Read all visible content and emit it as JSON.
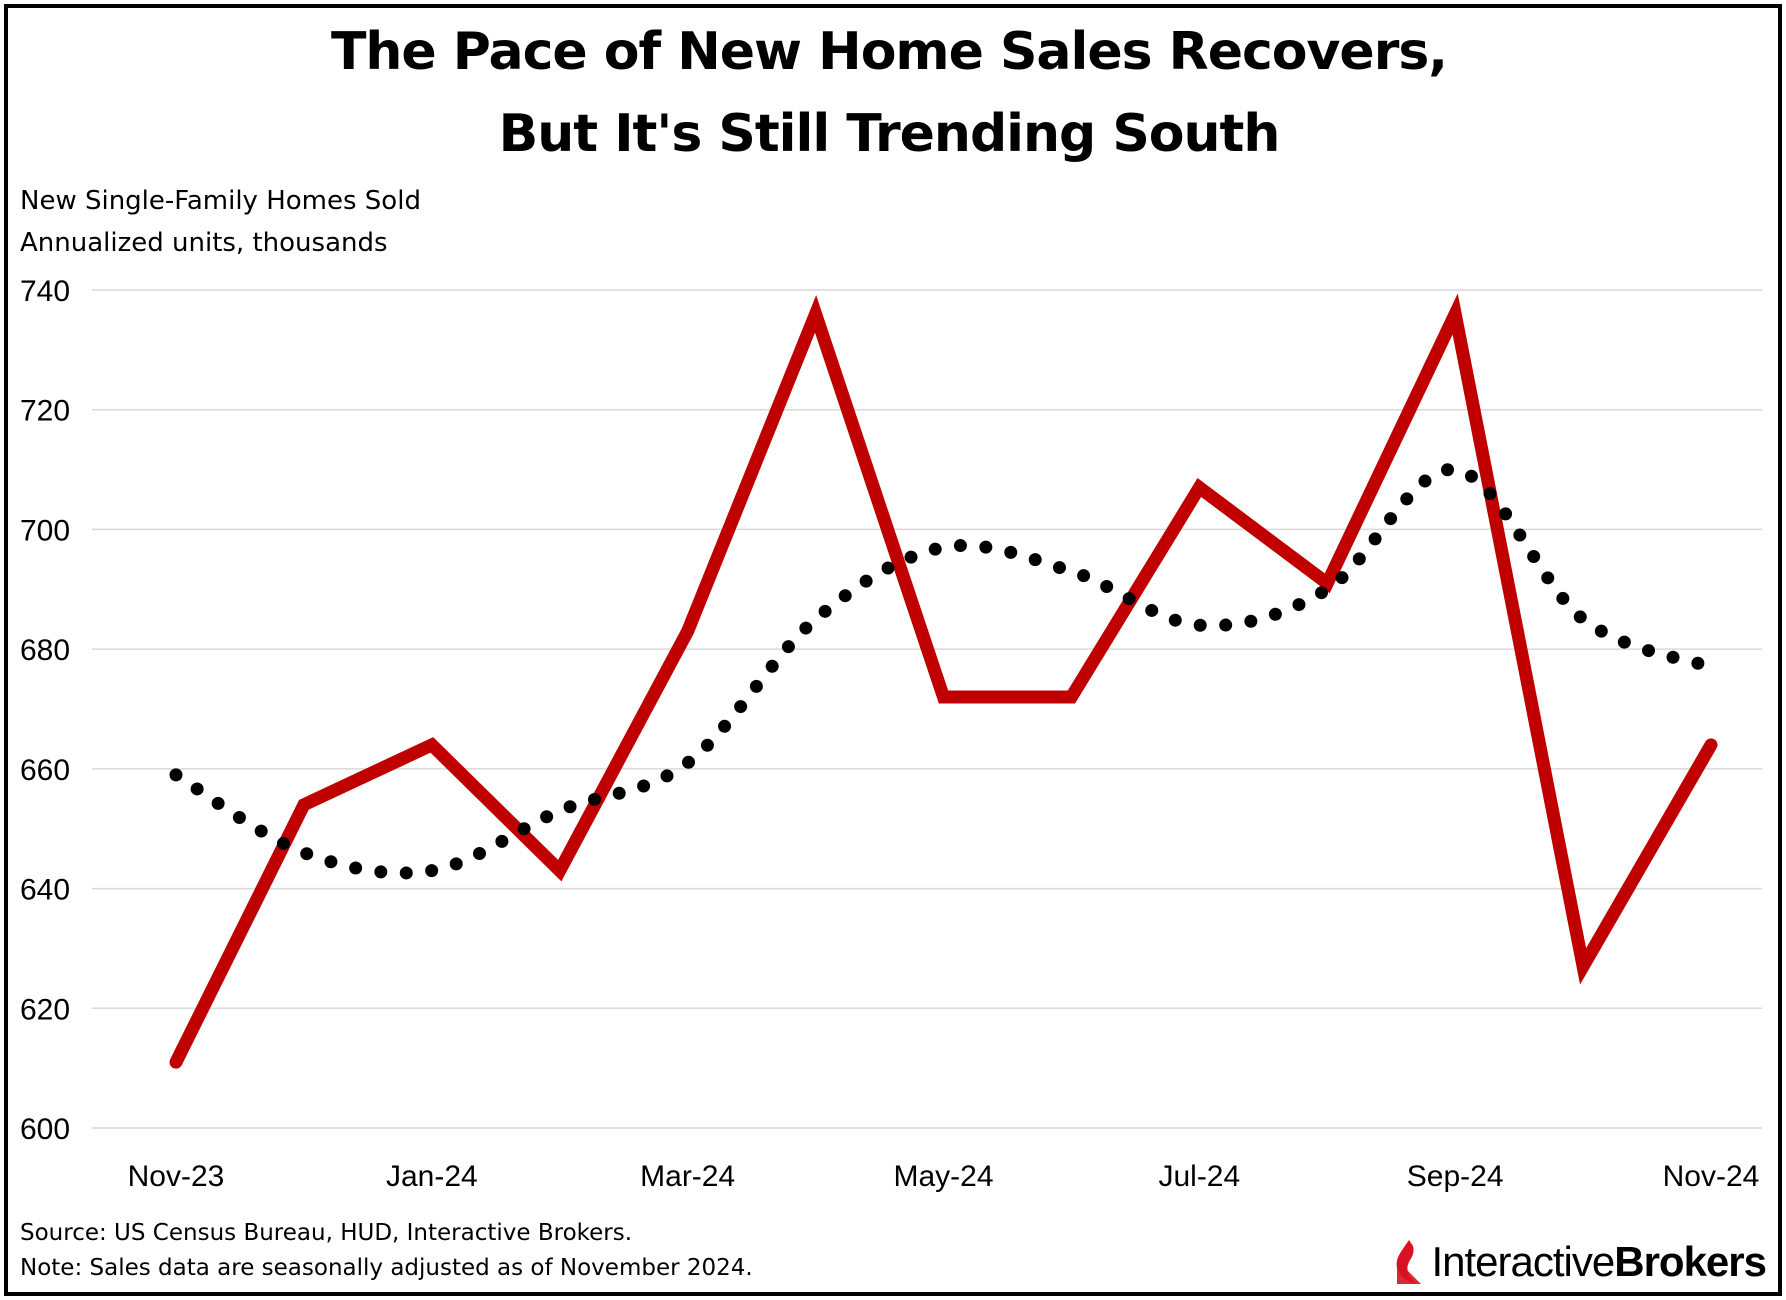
{
  "title_line1": "The Pace of New Home Sales Recovers,",
  "title_line2": "But It's Still Trending South",
  "subtitle_line1": "New Single-Family Homes Sold",
  "subtitle_line2": "Annualized units, thousands",
  "source": "Source: US Census Bureau, HUD, Interactive Brokers.",
  "note": "Note: Sales data are seasonally adjusted as of November 2024.",
  "logo": {
    "part1": "Interactive",
    "part2": "Brokers",
    "icon": "ib-flame-icon"
  },
  "colors": {
    "sales_line": "#C00000",
    "trend_dots": "#000000",
    "grid": "#d9d9d9"
  },
  "chart_data": {
    "type": "line",
    "categories": [
      "Nov-23",
      "Dec-23",
      "Jan-24",
      "Feb-24",
      "Mar-24",
      "Apr-24",
      "May-24",
      "Jun-24",
      "Jul-24",
      "Aug-24",
      "Sep-24",
      "Oct-24",
      "Nov-24"
    ],
    "x_tick_labels": [
      "Nov-23",
      "Jan-24",
      "Mar-24",
      "May-24",
      "Jul-24",
      "Sep-24",
      "Nov-24"
    ],
    "ylim": [
      600,
      740
    ],
    "y_ticks": [
      600,
      620,
      640,
      660,
      680,
      700,
      720,
      740
    ],
    "grid": true,
    "series": [
      {
        "style": "solid",
        "values": [
          611,
          654,
          664,
          643,
          683,
          736,
          672,
          672,
          707,
          691,
          736,
          627,
          664
        ]
      },
      {
        "style": "dotted",
        "values": [
          659,
          646,
          643,
          653,
          661,
          685,
          697,
          693,
          684,
          690,
          710,
          685,
          677
        ]
      }
    ]
  }
}
